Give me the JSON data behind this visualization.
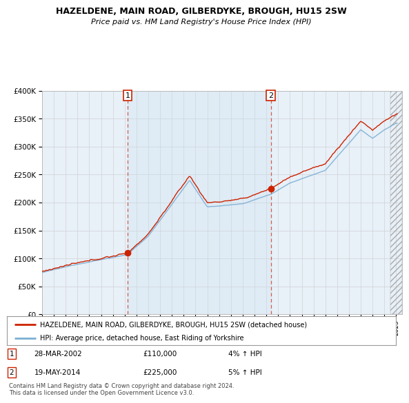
{
  "title": "HAZELDENE, MAIN ROAD, GILBERDYKE, BROUGH, HU15 2SW",
  "subtitle": "Price paid vs. HM Land Registry's House Price Index (HPI)",
  "legend_line1": "HAZELDENE, MAIN ROAD, GILBERDYKE, BROUGH, HU15 2SW (detached house)",
  "legend_line2": "HPI: Average price, detached house, East Riding of Yorkshire",
  "annotation1": {
    "num": "1",
    "date": "28-MAR-2002",
    "price": "£110,000",
    "hpi": "4% ↑ HPI"
  },
  "annotation2": {
    "num": "2",
    "date": "19-MAY-2014",
    "price": "£225,000",
    "hpi": "5% ↑ HPI"
  },
  "footer": "Contains HM Land Registry data © Crown copyright and database right 2024.\nThis data is licensed under the Open Government Licence v3.0.",
  "vline1_year": 2002.24,
  "vline2_year": 2014.38,
  "sale1_year": 2002.24,
  "sale1_price": 110000,
  "sale2_year": 2014.38,
  "sale2_price": 225000,
  "ylim": [
    0,
    400000
  ],
  "xlim_start": 1995,
  "xlim_end": 2025.5,
  "hpi_color": "#7aafd4",
  "property_color": "#cc2200",
  "vline_color": "#cc2200",
  "background_color": "#e8f0f8",
  "grid_color": "#cccccc",
  "shade_color": "#ddeeff"
}
